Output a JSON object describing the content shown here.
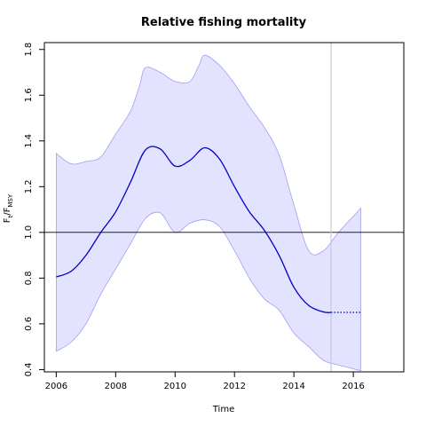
{
  "chart_data": {
    "type": "area",
    "title": "Relative fishing mortality",
    "xlabel": "Time",
    "ylabel": {
      "main": "F",
      "sub1": "t",
      "sep": "/F",
      "sub2": "MSY"
    },
    "xlim": [
      2005.6,
      2017.7
    ],
    "ylim": [
      0.39,
      1.83
    ],
    "xticks": [
      2006,
      2008,
      2010,
      2012,
      2014,
      2016
    ],
    "yticks": [
      0.4,
      0.6,
      0.8,
      1.0,
      1.2,
      1.4,
      1.6,
      1.8
    ],
    "ytick_labels": [
      "0.4",
      "0.6",
      "0.8",
      "1.0",
      "1.2",
      "1.4",
      "1.6",
      "1.8"
    ],
    "reference_line": 1.0,
    "current_year_marker": 2015.25,
    "colors": {
      "estimate": "#0000cc",
      "band_fill": "#e3e3ff",
      "band_edge": "#a0a0f0",
      "marker": "#c8c8d8"
    },
    "estimate": {
      "x": [
        2006.0,
        2006.5,
        2007.0,
        2007.5,
        2008.0,
        2008.5,
        2009.0,
        2009.5,
        2010.0,
        2010.5,
        2011.0,
        2011.5,
        2012.0,
        2012.5,
        2013.0,
        2013.5,
        2014.0,
        2014.5,
        2015.0,
        2015.25
      ],
      "y": [
        0.805,
        0.83,
        0.9,
        1.0,
        1.09,
        1.22,
        1.36,
        1.365,
        1.29,
        1.315,
        1.37,
        1.32,
        1.2,
        1.09,
        1.01,
        0.9,
        0.76,
        0.68,
        0.652,
        0.65
      ]
    },
    "projection": {
      "x": [
        2015.25,
        2016.25
      ],
      "y": [
        0.65,
        0.65
      ]
    },
    "upper": {
      "x": [
        2006.0,
        2006.5,
        2007.0,
        2007.5,
        2008.0,
        2008.5,
        2008.8,
        2009.0,
        2009.5,
        2010.0,
        2010.5,
        2010.8,
        2011.0,
        2011.5,
        2012.0,
        2012.5,
        2013.0,
        2013.5,
        2014.0,
        2014.5,
        2015.0,
        2015.5,
        2016.25
      ],
      "y": [
        1.345,
        1.3,
        1.31,
        1.33,
        1.43,
        1.53,
        1.64,
        1.72,
        1.7,
        1.66,
        1.66,
        1.73,
        1.775,
        1.73,
        1.65,
        1.55,
        1.46,
        1.34,
        1.12,
        0.92,
        0.92,
        1.0,
        1.105
      ]
    },
    "lower": {
      "x": [
        2006.0,
        2006.5,
        2007.0,
        2007.5,
        2008.0,
        2008.5,
        2009.0,
        2009.5,
        2010.0,
        2010.5,
        2011.0,
        2011.5,
        2012.0,
        2012.5,
        2013.0,
        2013.5,
        2014.0,
        2014.5,
        2015.0,
        2015.5,
        2016.25
      ],
      "y": [
        0.48,
        0.52,
        0.6,
        0.73,
        0.84,
        0.95,
        1.06,
        1.085,
        1.0,
        1.04,
        1.055,
        1.025,
        0.92,
        0.8,
        0.71,
        0.66,
        0.56,
        0.5,
        0.44,
        0.42,
        0.395
      ]
    }
  }
}
